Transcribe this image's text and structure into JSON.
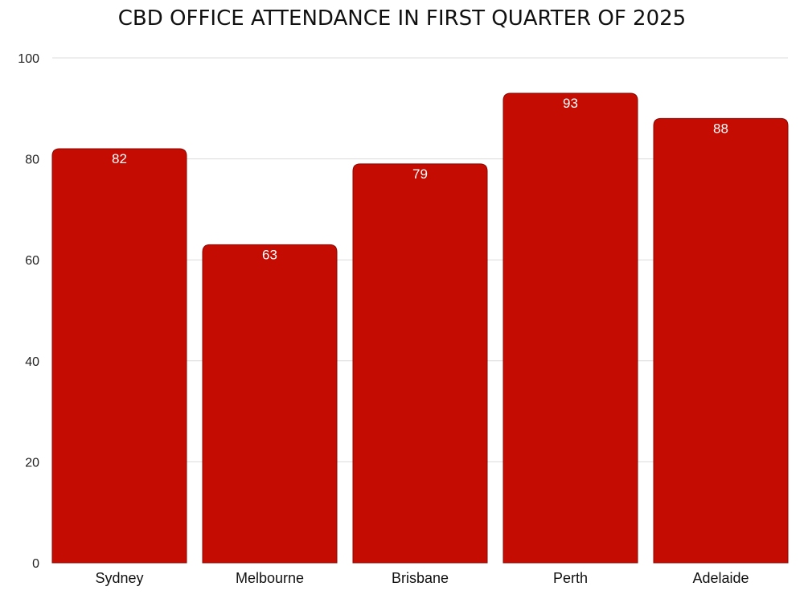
{
  "chart_data": {
    "type": "bar",
    "title": "CBD OFFICE ATTENDANCE IN FIRST QUARTER OF 2025",
    "categories": [
      "Sydney",
      "Melbourne",
      "Brisbane",
      "Perth",
      "Adelaide"
    ],
    "values": [
      82,
      63,
      79,
      93,
      88
    ],
    "xlabel": "",
    "ylabel": "",
    "ylim": [
      0,
      100
    ],
    "yticks": [
      "0",
      "20",
      "40",
      "60",
      "80",
      "100"
    ],
    "grid": true,
    "data_labels": true,
    "bar_color": "#c40c02"
  }
}
